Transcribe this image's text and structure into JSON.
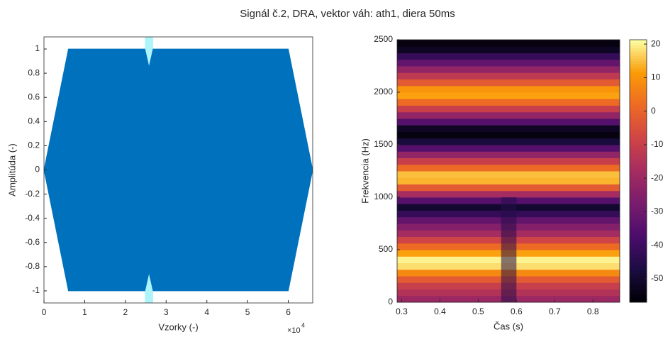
{
  "title": "Signál č.2, DRA, vektor váh: ath1, diera 50ms",
  "chart_data": [
    {
      "type": "envelope",
      "xlabel": "Vzorky (-)",
      "ylabel": "Amplitúda (-)",
      "x_multiplier": "×10",
      "x_exponent": "4",
      "x": [
        0,
        6000,
        24800,
        25800,
        26800,
        60000,
        66000
      ],
      "series": [
        {
          "color": "#0072bd",
          "values": [
            0,
            1,
            1,
            0.85,
            1,
            1,
            0
          ]
        },
        {
          "color": "#0072bd",
          "values": [
            0,
            -1,
            -1,
            -0.85,
            -1,
            -1,
            0
          ]
        }
      ],
      "gap_x": [
        24800,
        26800
      ],
      "gap_color": "#aef4fb",
      "xlim": [
        0,
        66000
      ],
      "xticks": [
        0,
        {
          "value": 10000,
          "label": "1"
        },
        {
          "value": 20000,
          "label": "2"
        },
        {
          "value": 30000,
          "label": "3"
        },
        {
          "value": 40000,
          "label": "4"
        },
        {
          "value": 50000,
          "label": "5"
        },
        {
          "value": 60000,
          "label": "6"
        }
      ],
      "ylim": [
        -1.1,
        1.1
      ],
      "yticks": [
        -1,
        -0.8,
        -0.6,
        -0.4,
        -0.2,
        0,
        0.2,
        0.4,
        0.6,
        0.8,
        1
      ]
    },
    {
      "type": "heatmap",
      "xlabel": "Čas (s)",
      "ylabel": "Frekvencia (Hz)",
      "bin_hz": 62.5,
      "values": [
        -20,
        -15,
        -10,
        -2,
        8,
        18,
        20,
        12,
        2,
        -8,
        -18,
        -25,
        -32,
        -42,
        -50,
        -35,
        -18,
        -2,
        14,
        15,
        2,
        -10,
        -22,
        -35,
        -48,
        -55,
        -52,
        -35,
        -22,
        -10,
        2,
        12,
        10,
        -2,
        -12,
        -22,
        -32,
        -42,
        -52,
        -55
      ],
      "gap": {
        "t": [
          0.56,
          0.6
        ],
        "f": [
          0,
          1000
        ],
        "value": -45
      },
      "xlim": [
        0.288,
        0.87
      ],
      "xticks": [
        0.3,
        0.4,
        0.5,
        0.6,
        0.7,
        0.8
      ],
      "ylim": [
        0,
        2500
      ],
      "yticks": [
        0,
        500,
        1000,
        1500,
        2000,
        2500
      ],
      "clim": [
        -57,
        21.3
      ],
      "cticks": [
        20,
        10,
        0,
        -10,
        -20,
        -30,
        -40,
        -50
      ]
    }
  ]
}
